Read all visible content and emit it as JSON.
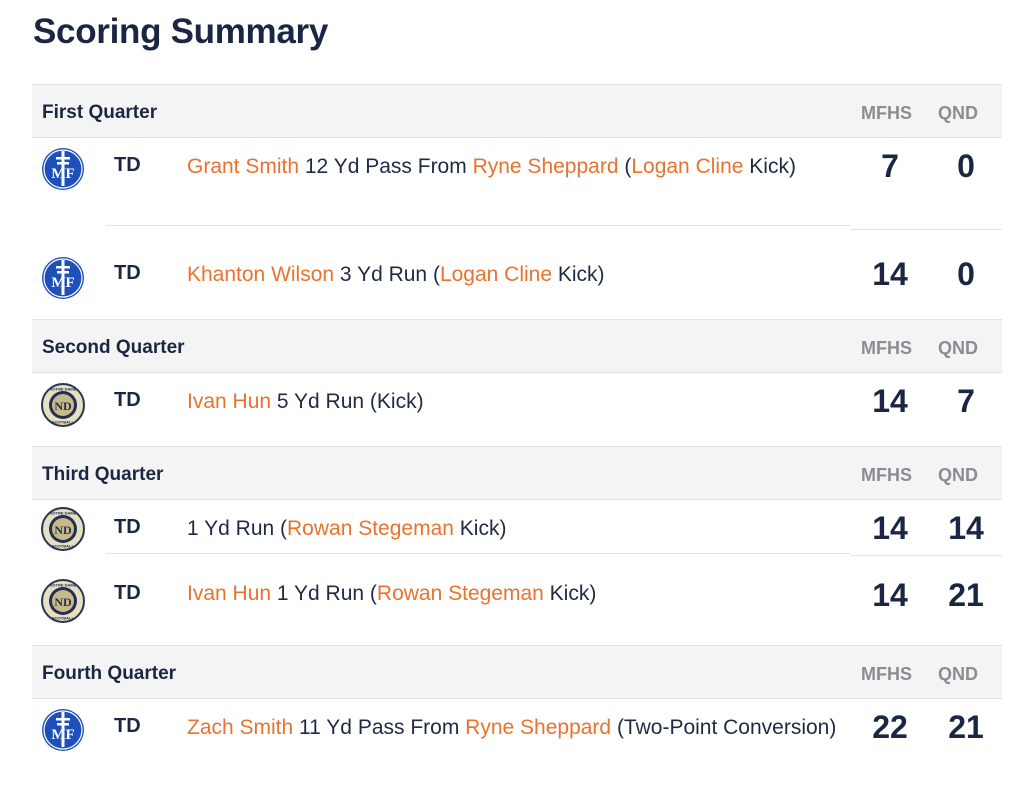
{
  "title": "Scoring Summary",
  "team_headers": [
    "MFHS",
    "QND"
  ],
  "quarters": [
    {
      "name": "First Quarter",
      "plays": [
        {
          "logo": "mf-logo",
          "type": "TD",
          "desc": [
            {
              "t": "Grant Smith",
              "p": true
            },
            {
              "t": " 12 Yd Pass From "
            },
            {
              "t": "Ryne Sheppard",
              "p": true
            },
            {
              "t": " ("
            },
            {
              "t": "Logan Cline",
              "p": true
            },
            {
              "t": " Kick)"
            }
          ],
          "mfhs": "7",
          "qnd": "0"
        },
        {
          "logo": "mf-logo",
          "type": "TD",
          "desc": [
            {
              "t": "Khanton Wilson",
              "p": true
            },
            {
              "t": " 3 Yd Run ("
            },
            {
              "t": "Logan Cline",
              "p": true
            },
            {
              "t": " Kick)"
            }
          ],
          "mfhs": "14",
          "qnd": "0"
        }
      ]
    },
    {
      "name": "Second Quarter",
      "plays": [
        {
          "logo": "nd-logo",
          "type": "TD",
          "desc": [
            {
              "t": "Ivan Hun",
              "p": true
            },
            {
              "t": " 5 Yd Run (Kick)"
            }
          ],
          "mfhs": "14",
          "qnd": "7"
        }
      ]
    },
    {
      "name": "Third Quarter",
      "plays": [
        {
          "logo": "nd-logo",
          "type": "TD",
          "desc": [
            {
              "t": "1 Yd Run ("
            },
            {
              "t": "Rowan Stegeman",
              "p": true
            },
            {
              "t": " Kick)"
            }
          ],
          "mfhs": "14",
          "qnd": "14"
        },
        {
          "logo": "nd-logo",
          "type": "TD",
          "desc": [
            {
              "t": "Ivan Hun",
              "p": true
            },
            {
              "t": " 1 Yd Run ("
            },
            {
              "t": "Rowan Stegeman",
              "p": true
            },
            {
              "t": " Kick)"
            }
          ],
          "mfhs": "14",
          "qnd": "21"
        }
      ]
    },
    {
      "name": "Fourth Quarter",
      "plays": [
        {
          "logo": "mf-logo",
          "type": "TD",
          "desc": [
            {
              "t": "Zach Smith",
              "p": true
            },
            {
              "t": " 11 Yd Pass From "
            },
            {
              "t": "Ryne Sheppard",
              "p": true
            },
            {
              "t": " (Two-Point Conversion)"
            }
          ],
          "mfhs": "22",
          "qnd": "21"
        }
      ]
    }
  ],
  "logo_text": {
    "mf": "MF",
    "nd": "ND",
    "nd_ring_top": "NOTRE DAME",
    "nd_ring_bottom": "FOOTBALL"
  }
}
